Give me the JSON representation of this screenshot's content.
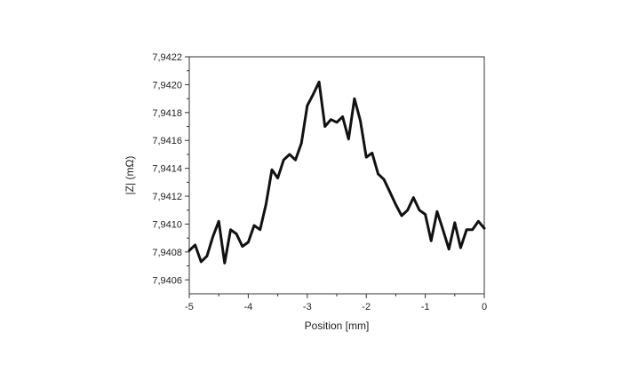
{
  "chart_data": {
    "type": "line",
    "title": "",
    "xlabel": "Position [mm]",
    "ylabel": "|Z| (mΩ)",
    "xlim": [
      -5,
      0
    ],
    "ylim": [
      7.9405,
      7.9422
    ],
    "x_ticks": [
      -5,
      -4,
      -3,
      -2,
      -1,
      0
    ],
    "x_tick_labels": [
      "-5",
      "-4",
      "-3",
      "-2",
      "-1",
      "0"
    ],
    "y_ticks": [
      7.9406,
      7.9408,
      7.941,
      7.9412,
      7.9414,
      7.9416,
      7.9418,
      7.942,
      7.9422
    ],
    "y_tick_labels": [
      "7,9406",
      "7,9408",
      "7,9410",
      "7,9412",
      "7,9414",
      "7,9416",
      "7,9418",
      "7,9420",
      "7,9422"
    ],
    "grid": false,
    "line_color": "#111111",
    "series": [
      {
        "x": [
          -5.0,
          -4.9,
          -4.8,
          -4.7,
          -4.6,
          -4.5,
          -4.4,
          -4.3,
          -4.2,
          -4.1,
          -4.0,
          -3.9,
          -3.8,
          -3.7,
          -3.6,
          -3.5,
          -3.4,
          -3.3,
          -3.2,
          -3.1,
          -3.0,
          -2.9,
          -2.8,
          -2.7,
          -2.6,
          -2.5,
          -2.4,
          -2.3,
          -2.2,
          -2.1,
          -2.0,
          -1.9,
          -1.8,
          -1.7,
          -1.6,
          -1.5,
          -1.4,
          -1.3,
          -1.2,
          -1.1,
          -1.0,
          -0.9,
          -0.8,
          -0.7,
          -0.6,
          -0.5,
          -0.4,
          -0.3,
          -0.2,
          -0.1,
          0.0
        ],
        "y": [
          7.94081,
          7.94085,
          7.94073,
          7.94077,
          7.94091,
          7.94102,
          7.94072,
          7.94096,
          7.94093,
          7.94084,
          7.94087,
          7.94099,
          7.94096,
          7.94114,
          7.94139,
          7.94133,
          7.94146,
          7.9415,
          7.94146,
          7.94158,
          7.94185,
          7.94193,
          7.94202,
          7.9417,
          7.94175,
          7.94173,
          7.94177,
          7.94161,
          7.9419,
          7.94174,
          7.94148,
          7.94151,
          7.94136,
          7.94132,
          7.94123,
          7.94114,
          7.94106,
          7.9411,
          7.94119,
          7.9411,
          7.94107,
          7.94088,
          7.94109,
          7.94096,
          7.94082,
          7.94101,
          7.94083,
          7.94096,
          7.94096,
          7.94102,
          7.94097
        ]
      }
    ]
  }
}
